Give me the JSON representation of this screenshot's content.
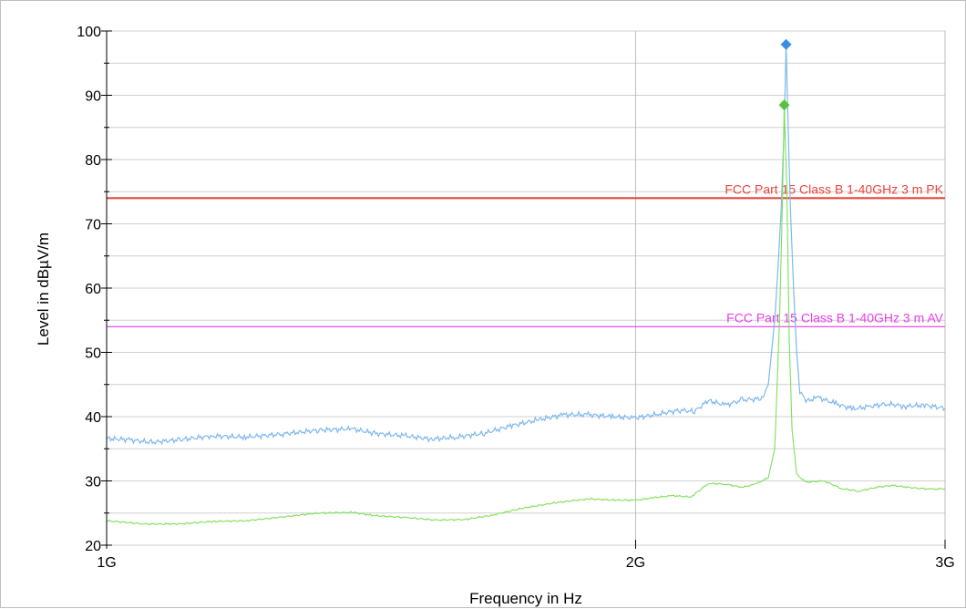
{
  "chart_data": {
    "type": "line",
    "xlabel": "Frequency in Hz",
    "ylabel": "Level in dBµV/m",
    "x_scale": "log",
    "xlim_hz": [
      1000000000,
      3000000000
    ],
    "ylim": [
      20,
      100
    ],
    "x_ticks": [
      {
        "value_hz": 1000000000,
        "label": "1G"
      },
      {
        "value_hz": 2000000000,
        "label": "2G"
      },
      {
        "value_hz": 3000000000,
        "label": "3G"
      }
    ],
    "y_ticks": [
      20,
      30,
      40,
      50,
      60,
      70,
      80,
      90,
      100
    ],
    "grid": true,
    "limit_lines": [
      {
        "name": "FCC Part 15 Class B 1-40GHz 3 m PK",
        "value": 74,
        "color": "#e8473f"
      },
      {
        "name": "FCC Part 15 Class B 1-40GHz 3 m AV",
        "value": 54,
        "color": "#e83ee8"
      }
    ],
    "series": [
      {
        "color": "#7fb8ef",
        "points": [
          [
            1000000000,
            36.6
          ],
          [
            1030000000,
            36.4
          ],
          [
            1060000000,
            36.0
          ],
          [
            1100000000,
            36.4
          ],
          [
            1150000000,
            37.0
          ],
          [
            1200000000,
            36.8
          ],
          [
            1260000000,
            37.3
          ],
          [
            1320000000,
            37.9
          ],
          [
            1380000000,
            38.1
          ],
          [
            1420000000,
            37.4
          ],
          [
            1480000000,
            37.0
          ],
          [
            1530000000,
            36.5
          ],
          [
            1580000000,
            36.8
          ],
          [
            1640000000,
            37.4
          ],
          [
            1700000000,
            38.6
          ],
          [
            1760000000,
            39.5
          ],
          [
            1820000000,
            40.3
          ],
          [
            1880000000,
            40.3
          ],
          [
            1940000000,
            40.0
          ],
          [
            2000000000,
            39.8
          ],
          [
            2060000000,
            40.4
          ],
          [
            2120000000,
            41.0
          ],
          [
            2160000000,
            40.8
          ],
          [
            2200000000,
            42.5
          ],
          [
            2250000000,
            41.8
          ],
          [
            2300000000,
            42.6
          ],
          [
            2360000000,
            42.8
          ],
          [
            2380000000,
            45.0
          ],
          [
            2400000000,
            55.0
          ],
          [
            2410000000,
            63.0
          ],
          [
            2420000000,
            72.0
          ],
          [
            2430000000,
            85.0
          ],
          [
            2436000000,
            97.9
          ],
          [
            2442000000,
            86.0
          ],
          [
            2450000000,
            72.0
          ],
          [
            2460000000,
            60.0
          ],
          [
            2470000000,
            50.0
          ],
          [
            2480000000,
            44.0
          ],
          [
            2500000000,
            42.4
          ],
          [
            2540000000,
            43.0
          ],
          [
            2600000000,
            42.0
          ],
          [
            2660000000,
            41.2
          ],
          [
            2720000000,
            41.6
          ],
          [
            2780000000,
            42.0
          ],
          [
            2850000000,
            41.6
          ],
          [
            2920000000,
            41.8
          ],
          [
            3000000000,
            41.3
          ]
        ]
      },
      {
        "color": "#7fe05a",
        "points": [
          [
            1000000000,
            23.8
          ],
          [
            1050000000,
            23.3
          ],
          [
            1100000000,
            23.3
          ],
          [
            1150000000,
            23.7
          ],
          [
            1200000000,
            23.8
          ],
          [
            1260000000,
            24.4
          ],
          [
            1320000000,
            25.0
          ],
          [
            1380000000,
            25.1
          ],
          [
            1420000000,
            24.6
          ],
          [
            1480000000,
            24.3
          ],
          [
            1540000000,
            23.9
          ],
          [
            1600000000,
            24.0
          ],
          [
            1660000000,
            24.7
          ],
          [
            1720000000,
            25.7
          ],
          [
            1800000000,
            26.6
          ],
          [
            1880000000,
            27.2
          ],
          [
            1950000000,
            27.0
          ],
          [
            2000000000,
            27.0
          ],
          [
            2050000000,
            27.4
          ],
          [
            2100000000,
            27.7
          ],
          [
            2150000000,
            27.5
          ],
          [
            2200000000,
            29.6
          ],
          [
            2250000000,
            29.5
          ],
          [
            2300000000,
            29.0
          ],
          [
            2340000000,
            29.5
          ],
          [
            2380000000,
            30.5
          ],
          [
            2400000000,
            35.0
          ],
          [
            2415000000,
            55.0
          ],
          [
            2425000000,
            75.0
          ],
          [
            2430000000,
            88.5
          ],
          [
            2438000000,
            76.0
          ],
          [
            2446000000,
            52.0
          ],
          [
            2455000000,
            38.0
          ],
          [
            2470000000,
            31.0
          ],
          [
            2500000000,
            29.8
          ],
          [
            2560000000,
            30.0
          ],
          [
            2620000000,
            28.8
          ],
          [
            2680000000,
            28.4
          ],
          [
            2740000000,
            29.0
          ],
          [
            2800000000,
            29.3
          ],
          [
            2880000000,
            28.9
          ],
          [
            2950000000,
            28.7
          ],
          [
            3000000000,
            28.8
          ]
        ]
      }
    ],
    "markers": [
      {
        "x_hz": 2436000000,
        "y": 97.9,
        "color": "#3a8fe0"
      },
      {
        "x_hz": 2430000000,
        "y": 88.5,
        "color": "#57c23a"
      }
    ]
  }
}
